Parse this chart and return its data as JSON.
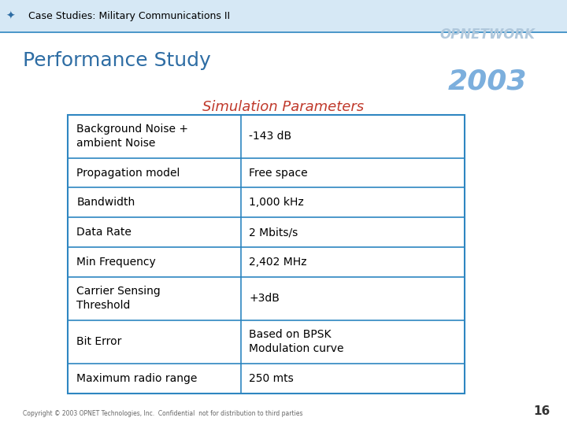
{
  "header_title": "Case Studies: Military Communications II",
  "slide_title": "Performance Study",
  "table_title": "Simulation Parameters",
  "table_title_color": "#C0392B",
  "background_color": "#FFFFFF",
  "header_bg": "#D6E8F5",
  "table_border_color": "#2E86C1",
  "table_rows": [
    [
      "Background Noise +\nambient Noise",
      "-143 dB"
    ],
    [
      "Propagation model",
      "Free space"
    ],
    [
      "Bandwidth",
      "1,000 kHz"
    ],
    [
      "Data Rate",
      "2 Mbits/s"
    ],
    [
      "Min Frequency",
      "2,402 MHz"
    ],
    [
      "Carrier Sensing\nThreshold",
      "+3dB"
    ],
    [
      "Bit Error",
      "Based on BPSK\nModulation curve"
    ],
    [
      "Maximum radio range",
      "250 mts"
    ]
  ],
  "footer_text": "Copyright © 2003 OPNET Technologies, Inc.  Confidential  not for distribution to third parties",
  "page_number": "16",
  "slide_title_color": "#2E6DA4",
  "header_title_color": "#000000",
  "table_text_color": "#000000"
}
